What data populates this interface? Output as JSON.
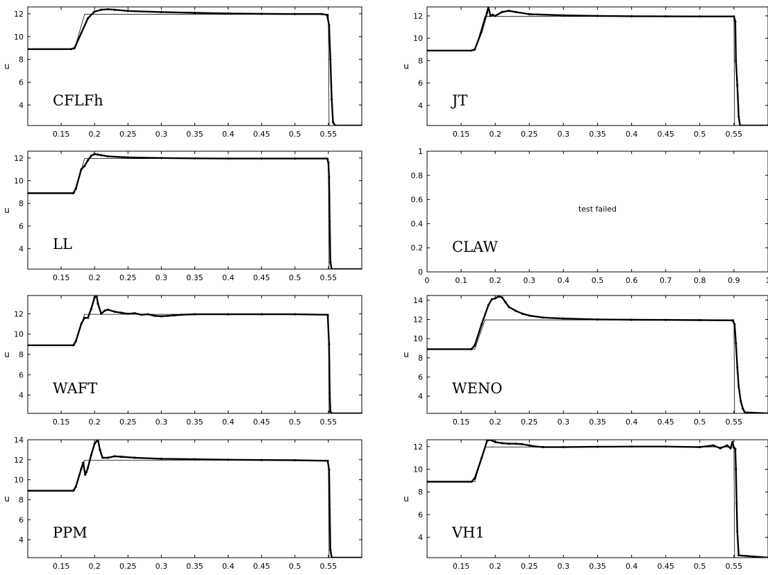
{
  "chart_data": [
    {
      "type": "line",
      "label": "CFLFh",
      "ylabel": "u",
      "xlim": [
        0.1,
        0.6
      ],
      "ylim": [
        2.2,
        12.6
      ],
      "xticks": [
        "0.15",
        "0.2",
        "0.25",
        "0.3",
        "0.35",
        "0.4",
        "0.45",
        "0.5",
        "0.55"
      ],
      "yticks": [
        "4",
        "6",
        "8",
        "10",
        "12"
      ],
      "exact": {
        "x": [
          0.1,
          0.17,
          0.185,
          0.55,
          0.551,
          0.6
        ],
        "y": [
          8.9,
          8.9,
          11.95,
          11.95,
          2.2,
          2.2
        ]
      },
      "series": [
        {
          "x": [
            0.1,
            0.165,
            0.17,
            0.18,
            0.19,
            0.2,
            0.21,
            0.22,
            0.23,
            0.25,
            0.3,
            0.35,
            0.4,
            0.45,
            0.5,
            0.54,
            0.548,
            0.551,
            0.553,
            0.555,
            0.557,
            0.56,
            0.6
          ],
          "y": [
            8.9,
            8.9,
            9.0,
            10.3,
            11.6,
            12.2,
            12.35,
            12.4,
            12.35,
            12.25,
            12.15,
            12.08,
            12.03,
            12.0,
            11.98,
            11.98,
            11.9,
            11.0,
            8.0,
            4.5,
            2.5,
            2.2,
            2.2
          ]
        }
      ]
    },
    {
      "type": "line",
      "label": "JT",
      "ylabel": "u",
      "xlim": [
        0.1,
        0.6
      ],
      "ylim": [
        2.2,
        12.8
      ],
      "xticks": [
        "0.15",
        "0.2",
        "0.25",
        "0.3",
        "0.35",
        "0.4",
        "0.45",
        "0.5",
        "0.55"
      ],
      "yticks": [
        "4",
        "6",
        "8",
        "10",
        "12"
      ],
      "exact": {
        "x": [
          0.1,
          0.17,
          0.185,
          0.55,
          0.551,
          0.6
        ],
        "y": [
          8.9,
          8.9,
          11.95,
          11.95,
          2.2,
          2.2
        ]
      },
      "series": [
        {
          "x": [
            0.1,
            0.165,
            0.17,
            0.18,
            0.188,
            0.19,
            0.193,
            0.196,
            0.2,
            0.21,
            0.22,
            0.23,
            0.25,
            0.3,
            0.35,
            0.4,
            0.45,
            0.5,
            0.55,
            0.552,
            0.553,
            0.555,
            0.557,
            0.559,
            0.6
          ],
          "y": [
            8.9,
            8.9,
            9.0,
            10.6,
            12.3,
            12.8,
            12.0,
            12.1,
            12.0,
            12.35,
            12.45,
            12.35,
            12.15,
            12.05,
            12.0,
            11.97,
            11.96,
            11.95,
            11.95,
            11.5,
            8.0,
            5.8,
            3.0,
            2.2,
            2.2
          ]
        }
      ]
    },
    {
      "type": "line",
      "label": "LL",
      "ylabel": "u",
      "xlim": [
        0.1,
        0.6
      ],
      "ylim": [
        2.2,
        12.6
      ],
      "xticks": [
        "0.15",
        "0.2",
        "0.25",
        "0.3",
        "0.35",
        "0.4",
        "0.45",
        "0.5",
        "0.55"
      ],
      "yticks": [
        "4",
        "6",
        "8",
        "10",
        "12"
      ],
      "exact": {
        "x": [
          0.1,
          0.17,
          0.185,
          0.55,
          0.551,
          0.6
        ],
        "y": [
          8.9,
          8.9,
          11.95,
          11.95,
          2.2,
          2.2
        ]
      },
      "series": [
        {
          "x": [
            0.1,
            0.168,
            0.172,
            0.18,
            0.185,
            0.19,
            0.195,
            0.2,
            0.205,
            0.21,
            0.22,
            0.25,
            0.3,
            0.35,
            0.4,
            0.45,
            0.5,
            0.548,
            0.55,
            0.551,
            0.552,
            0.553,
            0.555,
            0.6
          ],
          "y": [
            8.9,
            8.9,
            9.3,
            11.0,
            11.3,
            11.8,
            12.2,
            12.35,
            12.3,
            12.25,
            12.15,
            12.05,
            12.0,
            11.97,
            11.95,
            11.95,
            11.95,
            11.95,
            11.6,
            10.3,
            6.4,
            2.8,
            2.2,
            2.2
          ]
        }
      ]
    },
    {
      "type": "line",
      "label": "CLAW",
      "ylabel": "",
      "xlim": [
        0,
        1
      ],
      "ylim": [
        0,
        1
      ],
      "xticks": [
        "0",
        "0.1",
        "0.2",
        "0.3",
        "0.4",
        "0.5",
        "0.6",
        "0.7",
        "0.8",
        "0.9",
        "1"
      ],
      "yticks": [
        "0",
        "0.2",
        "0.4",
        "0.6",
        "0.8",
        "1"
      ],
      "note": "test failed",
      "exact": {
        "x": [],
        "y": []
      },
      "series": []
    },
    {
      "type": "line",
      "label": "WAFT",
      "ylabel": "u",
      "xlim": [
        0.1,
        0.6
      ],
      "ylim": [
        2.2,
        13.8
      ],
      "xticks": [
        "0.15",
        "0.2",
        "0.25",
        "0.3",
        "0.35",
        "0.4",
        "0.45",
        "0.5",
        "0.55"
      ],
      "yticks": [
        "4",
        "6",
        "8",
        "10",
        "12"
      ],
      "exact": {
        "x": [
          0.1,
          0.17,
          0.185,
          0.55,
          0.551,
          0.6
        ],
        "y": [
          8.9,
          8.9,
          11.95,
          11.95,
          2.2,
          2.2
        ]
      },
      "series": [
        {
          "x": [
            0.1,
            0.168,
            0.172,
            0.18,
            0.185,
            0.19,
            0.195,
            0.2,
            0.203,
            0.205,
            0.21,
            0.215,
            0.22,
            0.23,
            0.24,
            0.25,
            0.26,
            0.27,
            0.28,
            0.29,
            0.3,
            0.31,
            0.32,
            0.33,
            0.35,
            0.4,
            0.45,
            0.5,
            0.549,
            0.551,
            0.552,
            0.553,
            0.555,
            0.6
          ],
          "y": [
            8.9,
            8.9,
            9.3,
            11.0,
            11.6,
            11.6,
            12.5,
            13.6,
            13.8,
            13.0,
            12.0,
            12.3,
            12.4,
            12.2,
            12.1,
            12.0,
            12.05,
            11.9,
            11.95,
            11.8,
            11.75,
            11.8,
            11.85,
            11.9,
            11.95,
            11.95,
            11.95,
            11.95,
            11.9,
            9.0,
            4.2,
            2.4,
            2.2,
            2.2
          ]
        }
      ]
    },
    {
      "type": "line",
      "label": "WENO",
      "ylabel": "u",
      "xlim": [
        0.1,
        0.6
      ],
      "ylim": [
        2.2,
        14.5
      ],
      "xticks": [
        "0.15",
        "0.2",
        "0.25",
        "0.3",
        "0.35",
        "0.4",
        "0.45",
        "0.5",
        "0.55"
      ],
      "yticks": [
        "4",
        "6",
        "8",
        "10",
        "12",
        "14"
      ],
      "exact": {
        "x": [
          0.1,
          0.17,
          0.185,
          0.55,
          0.551,
          0.6
        ],
        "y": [
          8.9,
          8.9,
          11.95,
          11.95,
          2.2,
          2.2
        ]
      },
      "series": [
        {
          "x": [
            0.1,
            0.165,
            0.17,
            0.18,
            0.19,
            0.195,
            0.2,
            0.205,
            0.21,
            0.215,
            0.22,
            0.23,
            0.24,
            0.25,
            0.27,
            0.3,
            0.35,
            0.4,
            0.45,
            0.5,
            0.548,
            0.551,
            0.553,
            0.555,
            0.557,
            0.56,
            0.563,
            0.566,
            0.6
          ],
          "y": [
            8.9,
            8.9,
            9.3,
            11.5,
            13.5,
            14.1,
            14.2,
            14.4,
            14.3,
            13.8,
            13.3,
            12.9,
            12.6,
            12.4,
            12.2,
            12.1,
            12.0,
            11.97,
            11.95,
            11.93,
            11.9,
            11.5,
            9.5,
            7.0,
            5.0,
            3.5,
            2.7,
            2.3,
            2.2
          ]
        }
      ]
    },
    {
      "type": "line",
      "label": "PPM",
      "ylabel": "u",
      "xlim": [
        0.1,
        0.6
      ],
      "ylim": [
        2.2,
        14.0
      ],
      "xticks": [
        "0.15",
        "0.2",
        "0.25",
        "0.3",
        "0.35",
        "0.4",
        "0.45",
        "0.5",
        "0.55"
      ],
      "yticks": [
        "4",
        "6",
        "8",
        "10",
        "12",
        "14"
      ],
      "exact": {
        "x": [
          0.1,
          0.17,
          0.185,
          0.55,
          0.551,
          0.6
        ],
        "y": [
          8.9,
          8.9,
          11.95,
          11.95,
          2.2,
          2.2
        ]
      },
      "series": [
        {
          "x": [
            0.1,
            0.168,
            0.172,
            0.18,
            0.183,
            0.186,
            0.188,
            0.19,
            0.195,
            0.2,
            0.205,
            0.208,
            0.212,
            0.22,
            0.23,
            0.24,
            0.26,
            0.3,
            0.35,
            0.4,
            0.45,
            0.5,
            0.549,
            0.551,
            0.552,
            0.553,
            0.555,
            0.6
          ],
          "y": [
            8.9,
            8.9,
            9.3,
            11.1,
            11.7,
            10.5,
            10.8,
            11.2,
            12.5,
            13.6,
            14.0,
            13.0,
            12.2,
            12.2,
            12.35,
            12.3,
            12.2,
            12.1,
            12.05,
            12.0,
            11.97,
            11.95,
            11.9,
            11.0,
            7.0,
            3.0,
            2.2,
            2.2
          ]
        }
      ]
    },
    {
      "type": "line",
      "label": "VH1",
      "ylabel": "u",
      "xlim": [
        0.1,
        0.6
      ],
      "ylim": [
        2.2,
        12.6
      ],
      "xticks": [
        "0.15",
        "0.2",
        "0.25",
        "0.3",
        "0.35",
        "0.4",
        "0.45",
        "0.5",
        "0.55"
      ],
      "yticks": [
        "4",
        "6",
        "8",
        "10",
        "12"
      ],
      "exact": {
        "x": [
          0.1,
          0.17,
          0.185,
          0.55,
          0.551,
          0.6
        ],
        "y": [
          8.9,
          8.9,
          11.95,
          11.95,
          2.2,
          2.2
        ]
      },
      "series": [
        {
          "x": [
            0.1,
            0.165,
            0.17,
            0.18,
            0.188,
            0.192,
            0.2,
            0.21,
            0.22,
            0.23,
            0.24,
            0.25,
            0.26,
            0.27,
            0.3,
            0.35,
            0.4,
            0.45,
            0.5,
            0.52,
            0.53,
            0.54,
            0.545,
            0.548,
            0.55,
            0.552,
            0.553,
            0.554,
            0.555,
            0.557,
            0.6
          ],
          "y": [
            8.9,
            8.9,
            9.2,
            11.0,
            12.5,
            12.6,
            12.4,
            12.3,
            12.25,
            12.25,
            12.2,
            12.1,
            12.0,
            11.95,
            11.95,
            11.98,
            12.0,
            12.0,
            11.95,
            12.1,
            11.85,
            12.1,
            11.85,
            12.4,
            11.9,
            11.8,
            10.0,
            7.0,
            4.5,
            2.4,
            2.2
          ]
        }
      ]
    }
  ]
}
